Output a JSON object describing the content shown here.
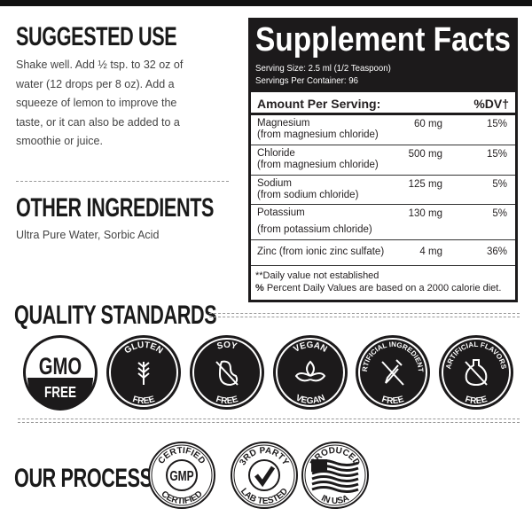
{
  "suggested_use": {
    "title": "SUGGESTED USE",
    "lines": [
      "Shake well. Add ½ tsp. to 32 oz of",
      "water (12 drops per 8 oz). Add a",
      "squeeze of lemon to improve the",
      "taste, or it can also be added to a",
      "smoothie or juice."
    ]
  },
  "other_ingredients": {
    "title": "OTHER INGREDIENTS",
    "text": "Ultra Pure Water, Sorbic Acid"
  },
  "supplement_facts": {
    "title": "Supplement Facts",
    "serving_size": "Serving Size: 2.5 ml (1/2 Teaspoon)",
    "servings_per_container": "Servings Per Container: 96",
    "amount_header": "Amount Per Serving:",
    "dv_header": "%DV†",
    "rows": [
      {
        "name": "Magnesium",
        "source": "(from magnesium chloride)",
        "amount": "60 mg",
        "dv": "15%"
      },
      {
        "name": "Chloride",
        "source": "(from magnesium chloride)",
        "amount": "500 mg",
        "dv": "15%"
      },
      {
        "name": "Sodium",
        "source": "(from sodium chloride)",
        "amount": "125 mg",
        "dv": "5%"
      },
      {
        "name": "Potassium",
        "source": "(from potassium chloride)",
        "amount": "130 mg",
        "dv": "5%"
      },
      {
        "name": "Zinc (from ionic zinc sulfate)",
        "source": "",
        "amount": "4 mg",
        "dv": "36%"
      }
    ],
    "footnote1": "**Daily value not established",
    "footnote2_symbol": "%",
    "footnote2": " Percent Daily Values are based on a 2000 calorie diet."
  },
  "quality": {
    "title": "QUALITY STANDARDS",
    "badges": [
      {
        "top": "GMO",
        "bottom": "FREE",
        "icon": "gmo-free-icon"
      },
      {
        "top": "GLUTEN",
        "bottom": "FREE",
        "icon": "wheat-icon"
      },
      {
        "top": "SOY",
        "bottom": "FREE",
        "icon": "soybean-icon"
      },
      {
        "top": "VEGAN",
        "bottom": "VEGAN",
        "icon": "leaf-icon"
      },
      {
        "top": "ARTIFICIAL INGREDIENTS",
        "bottom": "FREE",
        "icon": "dropper-icon"
      },
      {
        "top": "ARTIFICIAL FLAVORS",
        "bottom": "FREE",
        "icon": "bottle-icon"
      }
    ]
  },
  "process": {
    "title": "OUR PROCESS",
    "badges": [
      {
        "top": "CERTIFIED",
        "center": "GMP",
        "bottom": "CERTIFIED",
        "icon": "gmp-icon"
      },
      {
        "top": "3RD PARTY",
        "bottom": "LAB TESTED",
        "icon": "checkmark-icon"
      },
      {
        "top": "PRODUCED",
        "bottom": "IN USA",
        "icon": "us-flag-icon"
      }
    ]
  }
}
